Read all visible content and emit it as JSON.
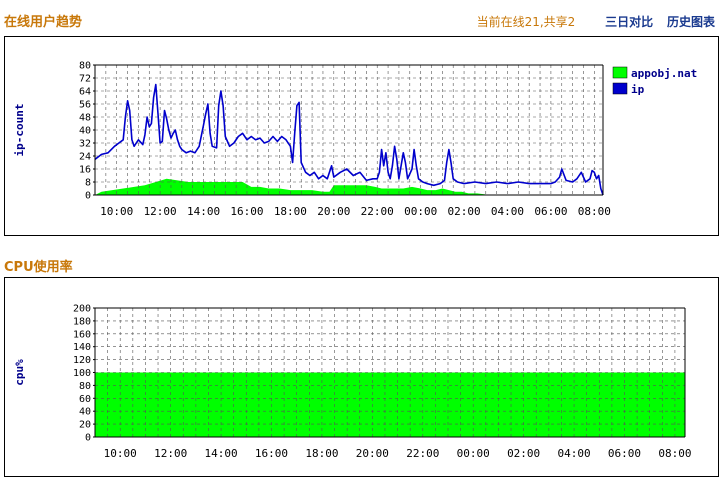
{
  "sections": {
    "trend": {
      "title": "在线用户趋势",
      "online_text": "当前在线21,共享2",
      "link_compare": "三日对比",
      "link_history": "历史图表"
    },
    "cpu": {
      "title": "CPU使用率"
    }
  },
  "colors": {
    "ip_line": "#0000cc",
    "nat_fill": "#00ff00",
    "cpu_fill": "#00ff00",
    "title": "#c8780a",
    "link": "#1a3a8f"
  },
  "chart_data": [
    {
      "type": "line",
      "ylabel": "ip-count",
      "ylim": [
        0,
        80
      ],
      "yticks": [
        0,
        8,
        16,
        24,
        32,
        40,
        48,
        56,
        64,
        72,
        80
      ],
      "x_range_hours": [
        9.0,
        32.4
      ],
      "xticks": [
        {
          "t": 10,
          "label": "10:00"
        },
        {
          "t": 12,
          "label": "12:00"
        },
        {
          "t": 14,
          "label": "14:00"
        },
        {
          "t": 16,
          "label": "16:00"
        },
        {
          "t": 18,
          "label": "18:00"
        },
        {
          "t": 20,
          "label": "20:00"
        },
        {
          "t": 22,
          "label": "22:00"
        },
        {
          "t": 24,
          "label": "00:00"
        },
        {
          "t": 26,
          "label": "02:00"
        },
        {
          "t": 28,
          "label": "04:00"
        },
        {
          "t": 30,
          "label": "06:00"
        },
        {
          "t": 32,
          "label": "08:00"
        }
      ],
      "legend": [
        "appobj.nat",
        "ip"
      ],
      "series": [
        {
          "name": "ip",
          "kind": "line",
          "points": [
            [
              9.0,
              22
            ],
            [
              9.3,
              25
            ],
            [
              9.6,
              26
            ],
            [
              9.9,
              30
            ],
            [
              10.1,
              32
            ],
            [
              10.3,
              34
            ],
            [
              10.4,
              48
            ],
            [
              10.5,
              58
            ],
            [
              10.6,
              52
            ],
            [
              10.7,
              34
            ],
            [
              10.8,
              30
            ],
            [
              11.0,
              34
            ],
            [
              11.2,
              31
            ],
            [
              11.3,
              37
            ],
            [
              11.4,
              48
            ],
            [
              11.5,
              42
            ],
            [
              11.6,
              44
            ],
            [
              11.7,
              60
            ],
            [
              11.8,
              68
            ],
            [
              11.9,
              50
            ],
            [
              12.0,
              32
            ],
            [
              12.1,
              33
            ],
            [
              12.2,
              52
            ],
            [
              12.3,
              47
            ],
            [
              12.4,
              40
            ],
            [
              12.5,
              35
            ],
            [
              12.6,
              38
            ],
            [
              12.7,
              40
            ],
            [
              12.8,
              34
            ],
            [
              12.9,
              30
            ],
            [
              13.0,
              28
            ],
            [
              13.2,
              26
            ],
            [
              13.4,
              27
            ],
            [
              13.6,
              26
            ],
            [
              13.8,
              30
            ],
            [
              14.0,
              43
            ],
            [
              14.1,
              50
            ],
            [
              14.2,
              56
            ],
            [
              14.3,
              38
            ],
            [
              14.4,
              30
            ],
            [
              14.6,
              29
            ],
            [
              14.7,
              55
            ],
            [
              14.8,
              64
            ],
            [
              14.9,
              55
            ],
            [
              15.0,
              36
            ],
            [
              15.2,
              30
            ],
            [
              15.4,
              32
            ],
            [
              15.6,
              36
            ],
            [
              15.8,
              38
            ],
            [
              16.0,
              34
            ],
            [
              16.2,
              36
            ],
            [
              16.4,
              34
            ],
            [
              16.6,
              35
            ],
            [
              16.8,
              32
            ],
            [
              17.0,
              33
            ],
            [
              17.2,
              36
            ],
            [
              17.4,
              33
            ],
            [
              17.6,
              36
            ],
            [
              17.8,
              34
            ],
            [
              18.0,
              30
            ],
            [
              18.1,
              20
            ],
            [
              18.2,
              38
            ],
            [
              18.3,
              55
            ],
            [
              18.4,
              57
            ],
            [
              18.5,
              20
            ],
            [
              18.7,
              14
            ],
            [
              18.9,
              12
            ],
            [
              19.1,
              14
            ],
            [
              19.3,
              10
            ],
            [
              19.5,
              12
            ],
            [
              19.7,
              10
            ],
            [
              19.9,
              18
            ],
            [
              20.0,
              11
            ],
            [
              20.3,
              14
            ],
            [
              20.6,
              16
            ],
            [
              20.9,
              12
            ],
            [
              21.2,
              14
            ],
            [
              21.5,
              9
            ],
            [
              21.8,
              10
            ],
            [
              22.0,
              10
            ],
            [
              22.1,
              14
            ],
            [
              22.2,
              28
            ],
            [
              22.3,
              18
            ],
            [
              22.4,
              26
            ],
            [
              22.5,
              14
            ],
            [
              22.6,
              10
            ],
            [
              22.7,
              18
            ],
            [
              22.8,
              30
            ],
            [
              22.9,
              22
            ],
            [
              23.0,
              10
            ],
            [
              23.2,
              26
            ],
            [
              23.3,
              20
            ],
            [
              23.4,
              10
            ],
            [
              23.6,
              16
            ],
            [
              23.7,
              28
            ],
            [
              23.8,
              18
            ],
            [
              23.9,
              10
            ],
            [
              24.1,
              8
            ],
            [
              24.3,
              7
            ],
            [
              24.6,
              6
            ],
            [
              24.9,
              7
            ],
            [
              25.1,
              9
            ],
            [
              25.2,
              20
            ],
            [
              25.3,
              28
            ],
            [
              25.4,
              20
            ],
            [
              25.5,
              10
            ],
            [
              25.7,
              8
            ],
            [
              26.0,
              7
            ],
            [
              26.5,
              8
            ],
            [
              27.0,
              7
            ],
            [
              27.5,
              8
            ],
            [
              28.0,
              7
            ],
            [
              28.5,
              8
            ],
            [
              29.0,
              7
            ],
            [
              29.5,
              7
            ],
            [
              30.0,
              7
            ],
            [
              30.2,
              8
            ],
            [
              30.4,
              11
            ],
            [
              30.5,
              16
            ],
            [
              30.7,
              9
            ],
            [
              31.0,
              8
            ],
            [
              31.2,
              10
            ],
            [
              31.4,
              14
            ],
            [
              31.6,
              8
            ],
            [
              31.8,
              10
            ],
            [
              31.9,
              15
            ],
            [
              32.0,
              14
            ],
            [
              32.1,
              10
            ],
            [
              32.2,
              12
            ],
            [
              32.3,
              4
            ],
            [
              32.4,
              0
            ]
          ]
        },
        {
          "name": "appobj.nat",
          "kind": "area",
          "points": [
            [
              9.0,
              0
            ],
            [
              9.3,
              2
            ],
            [
              9.8,
              3
            ],
            [
              10.3,
              4
            ],
            [
              10.8,
              5
            ],
            [
              11.3,
              6
            ],
            [
              11.8,
              8
            ],
            [
              12.3,
              10
            ],
            [
              12.8,
              9
            ],
            [
              13.3,
              8
            ],
            [
              13.8,
              8
            ],
            [
              14.3,
              8
            ],
            [
              14.8,
              8
            ],
            [
              15.3,
              8
            ],
            [
              15.8,
              8
            ],
            [
              16.2,
              5
            ],
            [
              16.6,
              5
            ],
            [
              17.0,
              4
            ],
            [
              17.5,
              4
            ],
            [
              18.0,
              3
            ],
            [
              18.5,
              3
            ],
            [
              19.0,
              3
            ],
            [
              19.5,
              2
            ],
            [
              19.8,
              2
            ],
            [
              20.0,
              6
            ],
            [
              20.5,
              6
            ],
            [
              21.0,
              6
            ],
            [
              21.5,
              6
            ],
            [
              21.9,
              5
            ],
            [
              22.2,
              4
            ],
            [
              22.5,
              4
            ],
            [
              22.8,
              4
            ],
            [
              23.2,
              4
            ],
            [
              23.6,
              5
            ],
            [
              24.0,
              4
            ],
            [
              24.3,
              3
            ],
            [
              24.7,
              3
            ],
            [
              25.0,
              4
            ],
            [
              25.3,
              3
            ],
            [
              25.6,
              2
            ],
            [
              25.9,
              2
            ],
            [
              26.2,
              1
            ],
            [
              26.6,
              1
            ],
            [
              27.2,
              0
            ],
            [
              32.4,
              0
            ]
          ]
        }
      ]
    },
    {
      "type": "area",
      "ylabel": "cpu%",
      "ylim": [
        0,
        200
      ],
      "yticks": [
        0,
        20,
        40,
        60,
        80,
        100,
        120,
        140,
        160,
        180,
        200
      ],
      "x_range_hours": [
        9.0,
        32.4
      ],
      "xticks": [
        {
          "t": 10,
          "label": "10:00"
        },
        {
          "t": 12,
          "label": "12:00"
        },
        {
          "t": 14,
          "label": "14:00"
        },
        {
          "t": 16,
          "label": "16:00"
        },
        {
          "t": 18,
          "label": "18:00"
        },
        {
          "t": 20,
          "label": "20:00"
        },
        {
          "t": 22,
          "label": "22:00"
        },
        {
          "t": 24,
          "label": "00:00"
        },
        {
          "t": 26,
          "label": "02:00"
        },
        {
          "t": 28,
          "label": "04:00"
        },
        {
          "t": 30,
          "label": "06:00"
        },
        {
          "t": 32,
          "label": "08:00"
        }
      ],
      "series": [
        {
          "kind": "area",
          "points": [
            [
              9.0,
              100
            ],
            [
              32.4,
              100
            ]
          ]
        }
      ]
    }
  ]
}
